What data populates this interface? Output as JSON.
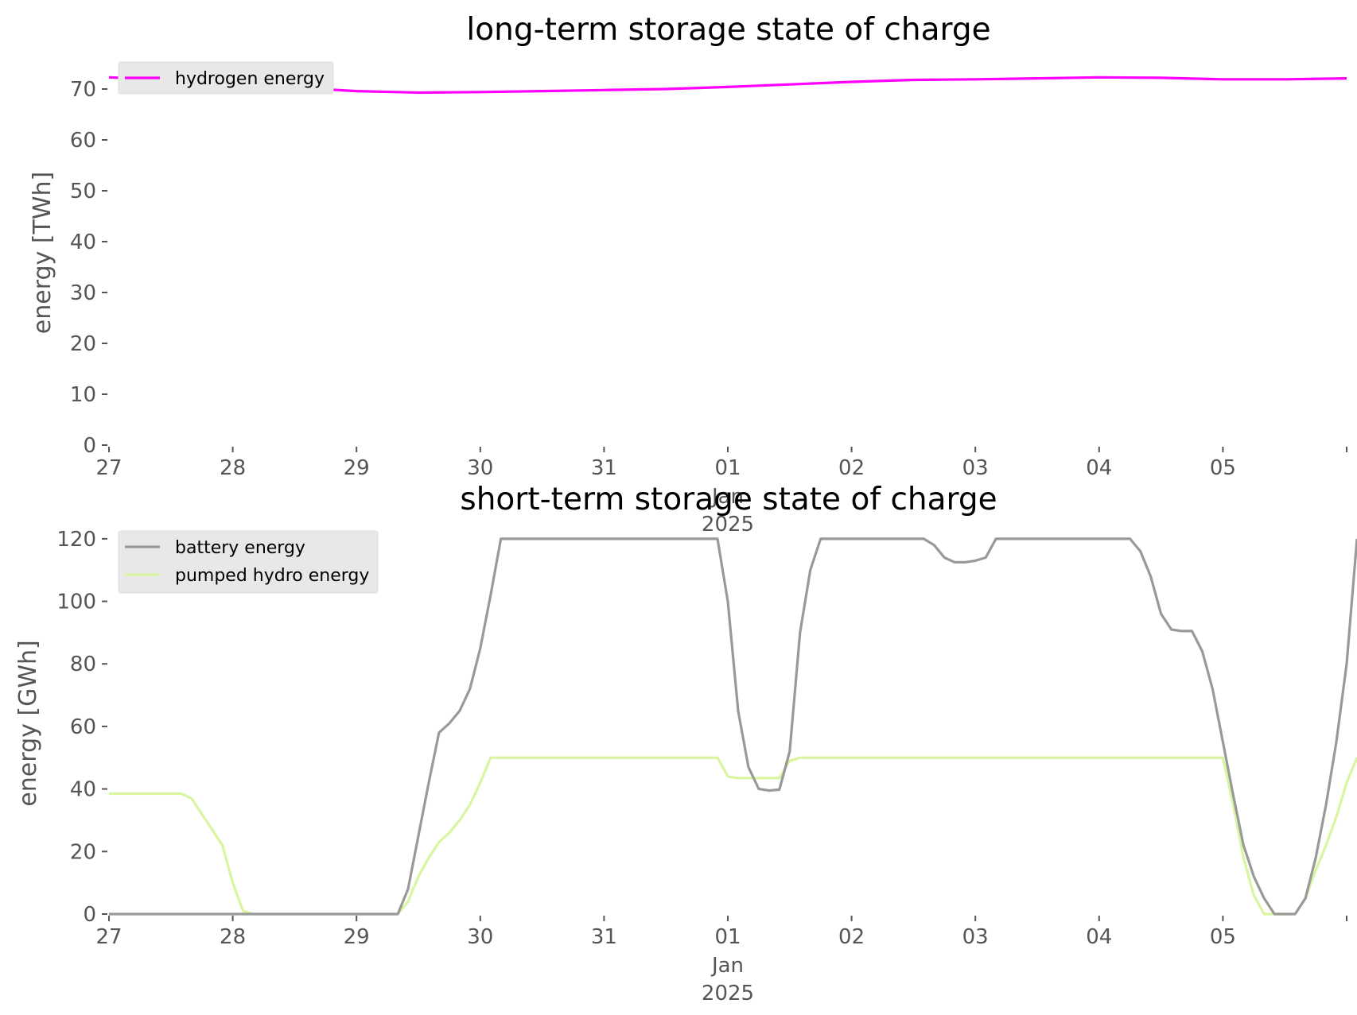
{
  "chart_data": [
    {
      "type": "line",
      "title": "long-term storage state of charge",
      "ylabel": "energy [TWh]",
      "xlabel": "",
      "ylim": [
        0,
        75
      ],
      "yticks": [
        0,
        10,
        20,
        30,
        40,
        50,
        60,
        70
      ],
      "xlim": [
        "2024-12-27",
        "2025-01-06"
      ],
      "xticks": [
        {
          "date": "2024-12-27",
          "label": "27"
        },
        {
          "date": "2024-12-28",
          "label": "28"
        },
        {
          "date": "2024-12-29",
          "label": "29"
        },
        {
          "date": "2024-12-30",
          "label": "30"
        },
        {
          "date": "2024-12-31",
          "label": "31"
        },
        {
          "date": "2025-01-01",
          "label": "01",
          "sub": [
            "Jan",
            "2025"
          ]
        },
        {
          "date": "2025-01-02",
          "label": "02"
        },
        {
          "date": "2025-01-03",
          "label": "03"
        },
        {
          "date": "2025-01-04",
          "label": "04"
        },
        {
          "date": "2025-01-05",
          "label": "05"
        }
      ],
      "grid": false,
      "legend_position": "top-left",
      "series": [
        {
          "name": "hydrogen energy",
          "color": "#ff00ff",
          "points": [
            [
              "2024-12-27 00:00",
              72.3
            ],
            [
              "2024-12-27 12:00",
              71.8
            ],
            [
              "2024-12-28 00:00",
              71.0
            ],
            [
              "2024-12-28 12:00",
              70.3
            ],
            [
              "2024-12-29 00:00",
              69.6
            ],
            [
              "2024-12-29 12:00",
              69.3
            ],
            [
              "2024-12-30 00:00",
              69.4
            ],
            [
              "2024-12-30 12:00",
              69.6
            ],
            [
              "2024-12-31 00:00",
              69.8
            ],
            [
              "2024-12-31 12:00",
              70.0
            ],
            [
              "2025-01-01 00:00",
              70.4
            ],
            [
              "2025-01-01 12:00",
              70.9
            ],
            [
              "2025-01-02 00:00",
              71.4
            ],
            [
              "2025-01-02 12:00",
              71.8
            ],
            [
              "2025-01-03 00:00",
              71.9
            ],
            [
              "2025-01-03 12:00",
              72.1
            ],
            [
              "2025-01-04 00:00",
              72.3
            ],
            [
              "2025-01-04 12:00",
              72.2
            ],
            [
              "2025-01-05 00:00",
              71.9
            ],
            [
              "2025-01-05 12:00",
              71.9
            ],
            [
              "2025-01-06 00:00",
              72.1
            ]
          ]
        }
      ]
    },
    {
      "type": "line",
      "title": "short-term storage state of charge",
      "ylabel": "energy [GWh]",
      "xlabel": "",
      "ylim": [
        0,
        122
      ],
      "yticks": [
        0,
        20,
        40,
        60,
        80,
        100,
        120
      ],
      "xlim": [
        "2024-12-27",
        "2025-01-06"
      ],
      "xticks": [
        {
          "date": "2024-12-27",
          "label": "27"
        },
        {
          "date": "2024-12-28",
          "label": "28"
        },
        {
          "date": "2024-12-29",
          "label": "29"
        },
        {
          "date": "2024-12-30",
          "label": "30"
        },
        {
          "date": "2024-12-31",
          "label": "31"
        },
        {
          "date": "2025-01-01",
          "label": "01",
          "sub": [
            "Jan",
            "2025"
          ]
        },
        {
          "date": "2025-01-02",
          "label": "02"
        },
        {
          "date": "2025-01-03",
          "label": "03"
        },
        {
          "date": "2025-01-04",
          "label": "04"
        },
        {
          "date": "2025-01-05",
          "label": "05"
        }
      ],
      "grid": false,
      "legend_position": "top-left",
      "series": [
        {
          "name": "battery energy",
          "color": "#999999",
          "points": [
            [
              "2024-12-27 00:00",
              0
            ],
            [
              "2024-12-29 08:00",
              0
            ],
            [
              "2024-12-29 10:00",
              8
            ],
            [
              "2024-12-29 12:00",
              25
            ],
            [
              "2024-12-29 14:00",
              42
            ],
            [
              "2024-12-29 16:00",
              58
            ],
            [
              "2024-12-29 18:00",
              61
            ],
            [
              "2024-12-29 20:00",
              65
            ],
            [
              "2024-12-29 22:00",
              72
            ],
            [
              "2024-12-30 00:00",
              85
            ],
            [
              "2024-12-30 02:00",
              102
            ],
            [
              "2024-12-30 04:00",
              120
            ],
            [
              "2024-12-31 22:00",
              120
            ],
            [
              "2025-01-01 00:00",
              100
            ],
            [
              "2025-01-01 02:00",
              65
            ],
            [
              "2025-01-01 04:00",
              47
            ],
            [
              "2025-01-01 06:00",
              40
            ],
            [
              "2025-01-01 08:00",
              39.5
            ],
            [
              "2025-01-01 10:00",
              39.8
            ],
            [
              "2025-01-01 12:00",
              52
            ],
            [
              "2025-01-01 14:00",
              90
            ],
            [
              "2025-01-01 16:00",
              110
            ],
            [
              "2025-01-01 18:00",
              120
            ],
            [
              "2025-01-02 14:00",
              120
            ],
            [
              "2025-01-02 16:00",
              118
            ],
            [
              "2025-01-02 18:00",
              114
            ],
            [
              "2025-01-02 20:00",
              112.5
            ],
            [
              "2025-01-02 22:00",
              112.5
            ],
            [
              "2025-01-03 00:00",
              113
            ],
            [
              "2025-01-03 02:00",
              114
            ],
            [
              "2025-01-03 04:00",
              120
            ],
            [
              "2025-01-04 06:00",
              120
            ],
            [
              "2025-01-04 08:00",
              116
            ],
            [
              "2025-01-04 10:00",
              108
            ],
            [
              "2025-01-04 12:00",
              96
            ],
            [
              "2025-01-04 14:00",
              91
            ],
            [
              "2025-01-04 16:00",
              90.5
            ],
            [
              "2025-01-04 18:00",
              90.5
            ],
            [
              "2025-01-04 20:00",
              84
            ],
            [
              "2025-01-04 22:00",
              72
            ],
            [
              "2025-01-05 00:00",
              55
            ],
            [
              "2025-01-05 02:00",
              38
            ],
            [
              "2025-01-05 04:00",
              22
            ],
            [
              "2025-01-05 06:00",
              12
            ],
            [
              "2025-01-05 08:00",
              5
            ],
            [
              "2025-01-05 10:00",
              0
            ],
            [
              "2025-01-05 14:00",
              0
            ],
            [
              "2025-01-05 16:00",
              5
            ],
            [
              "2025-01-05 18:00",
              18
            ],
            [
              "2025-01-05 20:00",
              35
            ],
            [
              "2025-01-05 22:00",
              55
            ],
            [
              "2025-01-06 00:00",
              80
            ],
            [
              "2025-01-06 02:00",
              120
            ]
          ]
        },
        {
          "name": "pumped hydro energy",
          "color": "#d9f5a0",
          "points": [
            [
              "2024-12-27 00:00",
              38.5
            ],
            [
              "2024-12-27 14:00",
              38.5
            ],
            [
              "2024-12-27 16:00",
              37
            ],
            [
              "2024-12-27 18:00",
              32
            ],
            [
              "2024-12-27 20:00",
              27
            ],
            [
              "2024-12-27 22:00",
              22
            ],
            [
              "2024-12-28 00:00",
              10
            ],
            [
              "2024-12-28 02:00",
              1
            ],
            [
              "2024-12-28 04:00",
              0
            ],
            [
              "2024-12-29 08:00",
              0
            ],
            [
              "2024-12-29 10:00",
              4
            ],
            [
              "2024-12-29 12:00",
              12
            ],
            [
              "2024-12-29 14:00",
              18
            ],
            [
              "2024-12-29 16:00",
              23
            ],
            [
              "2024-12-29 18:00",
              26
            ],
            [
              "2024-12-29 20:00",
              30
            ],
            [
              "2024-12-29 22:00",
              35
            ],
            [
              "2024-12-30 00:00",
              42
            ],
            [
              "2024-12-30 02:00",
              50
            ],
            [
              "2024-12-31 22:00",
              50
            ],
            [
              "2025-01-01 00:00",
              44
            ],
            [
              "2025-01-01 02:00",
              43.5
            ],
            [
              "2025-01-01 10:00",
              43.5
            ],
            [
              "2025-01-01 12:00",
              49
            ],
            [
              "2025-01-01 14:00",
              50
            ],
            [
              "2025-01-05 00:00",
              50
            ],
            [
              "2025-01-05 02:00",
              35
            ],
            [
              "2025-01-05 04:00",
              18
            ],
            [
              "2025-01-05 06:00",
              6
            ],
            [
              "2025-01-05 08:00",
              0
            ],
            [
              "2025-01-05 14:00",
              0
            ],
            [
              "2025-01-05 16:00",
              5
            ],
            [
              "2025-01-05 18:00",
              14
            ],
            [
              "2025-01-05 20:00",
              22
            ],
            [
              "2025-01-05 22:00",
              31
            ],
            [
              "2025-01-06 00:00",
              42
            ],
            [
              "2025-01-06 02:00",
              50
            ]
          ]
        }
      ]
    }
  ]
}
